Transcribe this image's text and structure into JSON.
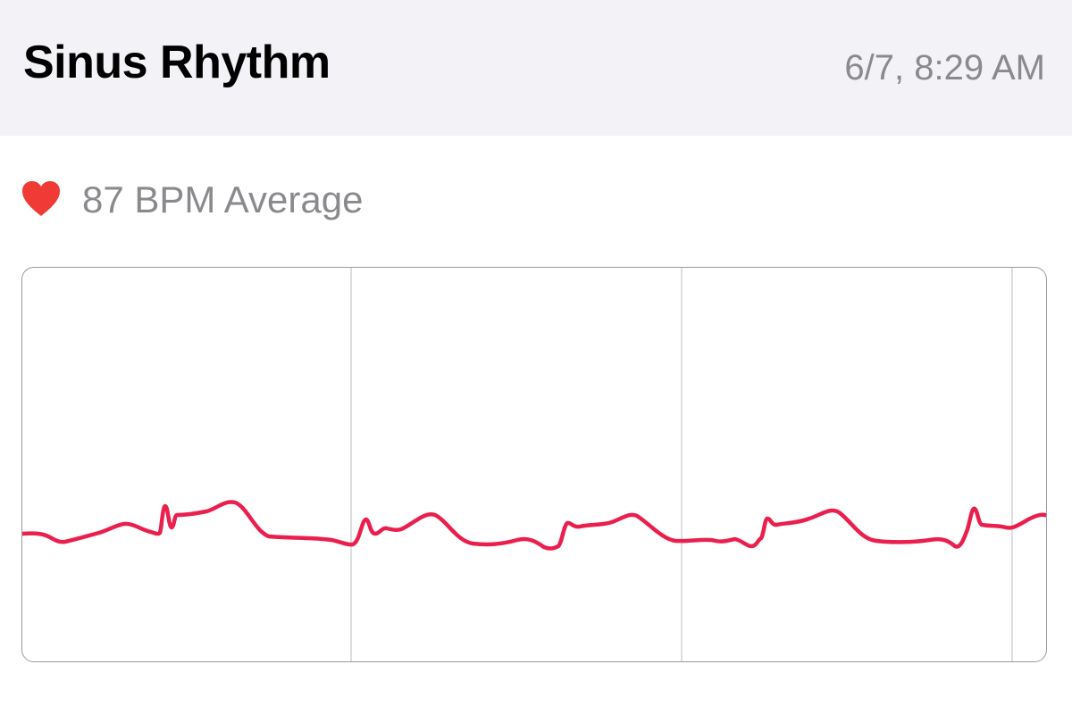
{
  "header": {
    "title": "Sinus Rhythm",
    "timestamp": "6/7, 8:29 AM"
  },
  "summary": {
    "icon": "heart-icon",
    "text": "87 BPM Average",
    "heart_color": "#ef3a35"
  },
  "ecg": {
    "trace_color": "#ea1f4d",
    "gridline_color": "#d4d4d6"
  }
}
